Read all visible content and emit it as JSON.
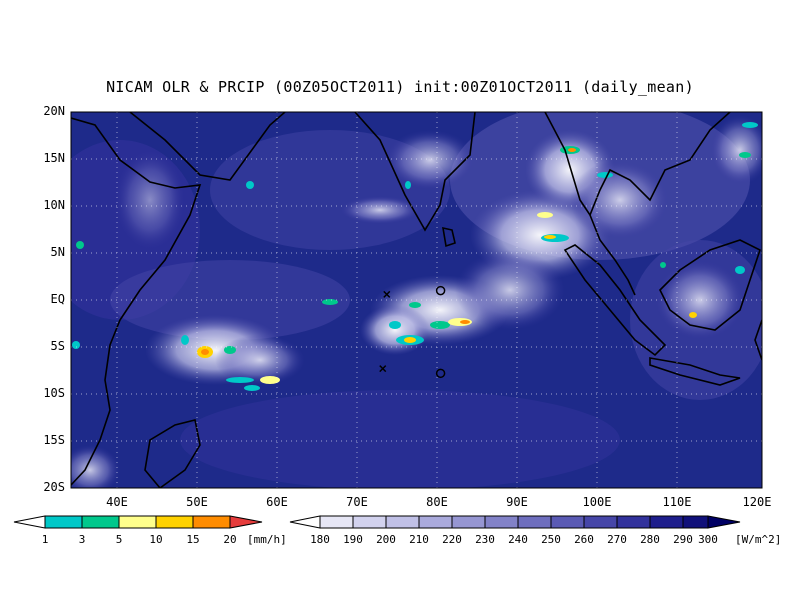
{
  "title": "NICAM OLR & PRCIP (00Z05OCT2011) init:00Z01OCT2011 (daily_mean)",
  "map": {
    "lat_labels": [
      "20N",
      "15N",
      "10N",
      "5N",
      "EQ",
      "5S",
      "10S",
      "15S",
      "20S"
    ],
    "lon_labels": [
      "40E",
      "50E",
      "60E",
      "70E",
      "80E",
      "90E",
      "100E",
      "110E",
      "120E"
    ],
    "extent": {
      "lon_min": 34,
      "lon_max": 120,
      "lat_min": -20,
      "lat_max": 20
    },
    "background_color": "#1e2a8a",
    "markers": [
      {
        "symbol": "x",
        "lon": 73.3,
        "lat": 0.6
      },
      {
        "symbol": "x",
        "lon": 72.8,
        "lat": -7.3
      },
      {
        "symbol": "o",
        "lon": 80.0,
        "lat": 1.0
      },
      {
        "symbol": "o",
        "lon": 80.0,
        "lat": -7.8
      }
    ]
  },
  "precip_colorbar": {
    "ticks": [
      "1",
      "3",
      "5",
      "10",
      "15",
      "20"
    ],
    "unit": "[mm/h]",
    "colors": [
      "#ffffff",
      "#00c8c8",
      "#00c88c",
      "#ffff8c",
      "#ffd200",
      "#ff8c00",
      "#e63c3c"
    ]
  },
  "olr_colorbar": {
    "ticks": [
      "180",
      "190",
      "200",
      "210",
      "220",
      "230",
      "240",
      "250",
      "260",
      "270",
      "280",
      "290",
      "300"
    ],
    "unit": "[W/m^2]",
    "colors": [
      "#ffffff",
      "#e6e6f5",
      "#d2d2ee",
      "#c0c0e6",
      "#aaaadc",
      "#9696d2",
      "#8282c8",
      "#6e6ebe",
      "#5a5ab4",
      "#4646a8",
      "#32329c",
      "#1e1e8c",
      "#10107a",
      "#000064"
    ]
  }
}
